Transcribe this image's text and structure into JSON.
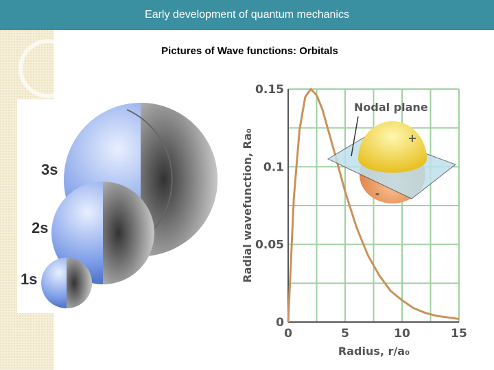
{
  "slide": {
    "title": "Early development of quantum mechanics",
    "subtitle": "Pictures of Wave functions: Orbitals"
  },
  "orbitals": {
    "labels": [
      "3s",
      "2s",
      "1s"
    ]
  },
  "chart_data": {
    "type": "line",
    "x": [
      0,
      0.5,
      1,
      1.5,
      2,
      2.5,
      3,
      4,
      5,
      6,
      7,
      8,
      9,
      10,
      11,
      12,
      13,
      14,
      15
    ],
    "values": [
      0,
      0.08,
      0.124,
      0.145,
      0.15,
      0.146,
      0.137,
      0.111,
      0.084,
      0.061,
      0.043,
      0.03,
      0.02,
      0.014,
      0.009,
      0.006,
      0.004,
      0.003,
      0.002
    ],
    "color": "#c8925a",
    "xlabel": "Radius, r/a₀",
    "ylabel": "Radial wavefunction, Ra₀",
    "xlim": [
      0,
      15
    ],
    "ylim": [
      0,
      0.15
    ],
    "xticks": [
      0,
      5,
      10,
      15
    ],
    "yticks": [
      0,
      0.05,
      0.1,
      0.15
    ],
    "x_minor_ticks": [
      2.5,
      7.5,
      12.5
    ],
    "y_minor_ticks": [
      0.025,
      0.075,
      0.125
    ],
    "grid": true,
    "grid_color": "#9fd19f",
    "annotations": [
      "Nodal plane",
      "+",
      "-"
    ]
  }
}
